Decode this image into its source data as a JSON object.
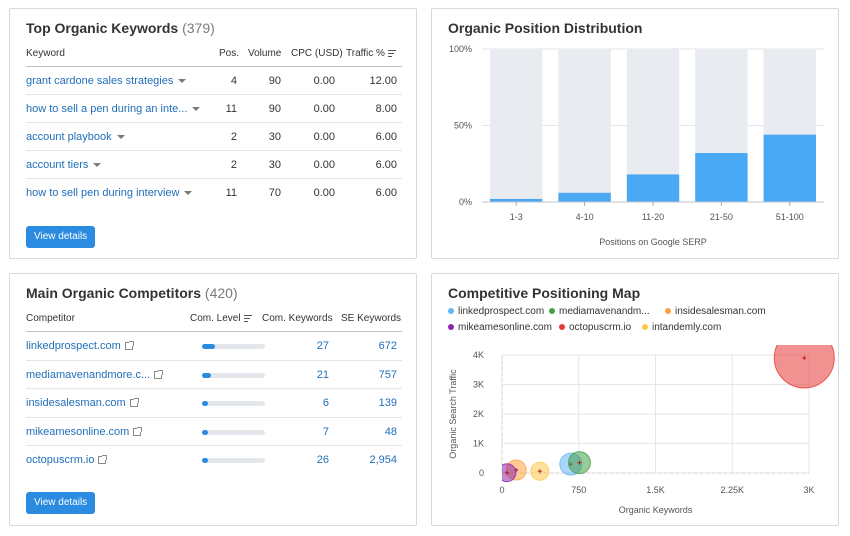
{
  "keywords_card": {
    "title": "Top Organic Keywords",
    "count": "(379)",
    "headers": {
      "keyword": "Keyword",
      "pos": "Pos.",
      "volume": "Volume",
      "cpc": "CPC (USD)",
      "traffic": "Traffic %"
    },
    "rows": [
      {
        "keyword": "grant cardone sales strategies",
        "pos": "4",
        "volume": "90",
        "cpc": "0.00",
        "traffic": "12.00"
      },
      {
        "keyword": "how to sell a pen during an inte...",
        "pos": "11",
        "volume": "90",
        "cpc": "0.00",
        "traffic": "8.00"
      },
      {
        "keyword": "account playbook",
        "pos": "2",
        "volume": "30",
        "cpc": "0.00",
        "traffic": "6.00"
      },
      {
        "keyword": "account tiers",
        "pos": "2",
        "volume": "30",
        "cpc": "0.00",
        "traffic": "6.00"
      },
      {
        "keyword": "how to sell pen during interview",
        "pos": "11",
        "volume": "70",
        "cpc": "0.00",
        "traffic": "6.00"
      }
    ],
    "button": "View details"
  },
  "position_card": {
    "title": "Organic Position Distribution"
  },
  "competitors_card": {
    "title": "Main Organic Competitors",
    "count": "(420)",
    "headers": {
      "competitor": "Competitor",
      "level": "Com. Level",
      "keywords": "Com. Keywords",
      "se": "SE Keywords"
    },
    "rows": [
      {
        "name": "linkedprospect.com",
        "level": 0.2,
        "keywords": "27",
        "se": "672"
      },
      {
        "name": "mediamavenandmore.c...",
        "level": 0.15,
        "keywords": "21",
        "se": "757"
      },
      {
        "name": "insidesalesman.com",
        "level": 0.08,
        "keywords": "6",
        "se": "139"
      },
      {
        "name": "mikeamesonline.com",
        "level": 0.08,
        "keywords": "7",
        "se": "48"
      },
      {
        "name": "octopuscrm.io",
        "level": 0.08,
        "keywords": "26",
        "se": "2,954"
      }
    ],
    "button": "View details"
  },
  "map_card": {
    "title": "Competitive Positioning Map",
    "legend": [
      {
        "name": "linkedprospect.com",
        "color": "#64b5f6"
      },
      {
        "name": "mediamavenandm...",
        "color": "#43a047"
      },
      {
        "name": "insidesalesman.com",
        "color": "#ffa040"
      },
      {
        "name": "mikeamesonline.com",
        "color": "#8e24aa"
      },
      {
        "name": "octopuscrm.io",
        "color": "#e53935"
      },
      {
        "name": "intandemly.com",
        "color": "#ffc84a"
      }
    ]
  },
  "chart_data": [
    {
      "type": "bar",
      "title": "Organic Position Distribution",
      "xlabel": "Positions on Google SERP",
      "ylabel": "",
      "categories": [
        "1-3",
        "4-10",
        "11-20",
        "21-50",
        "51-100"
      ],
      "values": [
        2,
        6,
        18,
        32,
        44
      ],
      "ylim": [
        0,
        100
      ],
      "yticks": [
        "0%",
        "50%",
        "100%"
      ],
      "colors": {
        "bar": "#4aa9f5",
        "track": "#e8ebef"
      }
    },
    {
      "type": "scatter",
      "title": "Competitive Positioning Map",
      "xlabel": "Organic Keywords",
      "ylabel": "Organic Search Traffic",
      "xlim": [
        0,
        3000
      ],
      "ylim": [
        0,
        4000
      ],
      "xticks": [
        "0",
        "750",
        "1.5K",
        "2.25K",
        "3K"
      ],
      "yticks": [
        "0",
        "1K",
        "2K",
        "3K",
        "4K"
      ],
      "series": [
        {
          "name": "linkedprospect.com",
          "x": 672,
          "y": 300,
          "size": 11,
          "color": "#64b5f6"
        },
        {
          "name": "mediamavenandm...",
          "x": 757,
          "y": 350,
          "size": 11,
          "color": "#43a047"
        },
        {
          "name": "insidesalesman.com",
          "x": 139,
          "y": 100,
          "size": 10,
          "color": "#ffa040"
        },
        {
          "name": "mikeamesonline.com",
          "x": 48,
          "y": 10,
          "size": 9,
          "color": "#8e24aa"
        },
        {
          "name": "octopuscrm.io",
          "x": 2954,
          "y": 3900,
          "size": 30,
          "color": "#e53935"
        },
        {
          "name": "intandemly.com",
          "x": 370,
          "y": 60,
          "size": 9,
          "color": "#ffc84a"
        }
      ]
    }
  ]
}
